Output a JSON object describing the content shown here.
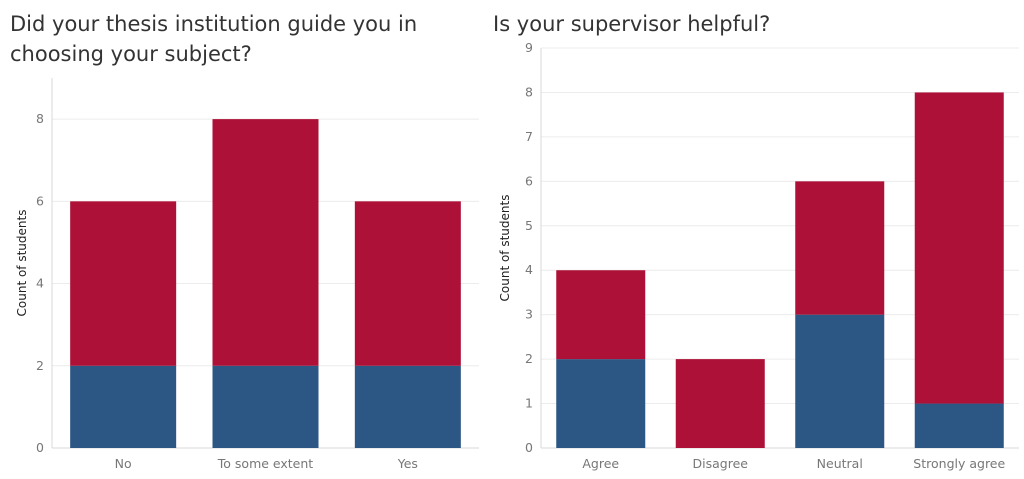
{
  "colors": {
    "blue": "#2c5784",
    "red": "#ad1137",
    "grid": "#ececec",
    "axis": "#d8d8d8"
  },
  "chart_data": [
    {
      "type": "bar",
      "stacked": true,
      "title": "Did your thesis institution guide you in choosing your subject?",
      "ylabel": "Count of students",
      "xlabel": "",
      "categories": [
        "No",
        "To some extent",
        "Yes"
      ],
      "series": [
        {
          "values": [
            2,
            2,
            2
          ],
          "color": "#2c5784"
        },
        {
          "values": [
            4,
            6,
            4
          ],
          "color": "#ad1137"
        }
      ],
      "ylim": [
        0,
        9
      ],
      "yticks": [
        0,
        2,
        4,
        6,
        8
      ],
      "grid": true
    },
    {
      "type": "bar",
      "stacked": true,
      "title": "Is your supervisor helpful?",
      "ylabel": "Count of students",
      "xlabel": "",
      "categories": [
        "Agree",
        "Disagree",
        "Neutral",
        "Strongly agree"
      ],
      "series": [
        {
          "values": [
            2,
            0,
            3,
            1
          ],
          "color": "#2c5784"
        },
        {
          "values": [
            2,
            2,
            3,
            7
          ],
          "color": "#ad1137"
        }
      ],
      "ylim": [
        0,
        9
      ],
      "yticks": [
        0,
        1,
        2,
        3,
        4,
        5,
        6,
        7,
        8,
        9
      ],
      "grid": true
    }
  ]
}
